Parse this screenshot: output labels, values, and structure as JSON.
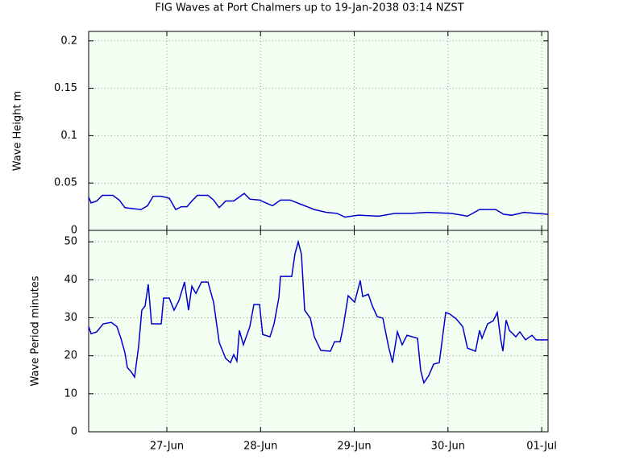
{
  "chart_data": [
    {
      "type": "line",
      "title": "FIG Waves at Port Chalmers up to 19-Jan-2038 03:14 NZST",
      "y_label": "Wave Height m",
      "xlim": [
        0.166,
        5.068
      ],
      "ylim": [
        0,
        0.21
      ],
      "yticks": [
        0,
        0.05,
        0.1,
        0.15,
        0.2
      ],
      "grid": true,
      "x": [
        0.166,
        0.192,
        0.252,
        0.312,
        0.424,
        0.493,
        0.553,
        0.639,
        0.725,
        0.794,
        0.854,
        0.94,
        1.026,
        1.095,
        1.155,
        1.215,
        1.267,
        1.327,
        1.439,
        1.499,
        1.559,
        1.628,
        1.714,
        1.826,
        1.886,
        1.989,
        2.058,
        2.127,
        2.213,
        2.316,
        2.445,
        2.574,
        2.703,
        2.815,
        2.901,
        3.047,
        3.262,
        3.434,
        3.606,
        3.778,
        4.035,
        4.208,
        4.337,
        4.509,
        4.595,
        4.681,
        4.81,
        4.939,
        5.068
      ],
      "series": [
        {
          "name": "Wave Height",
          "color": "#0000cc",
          "values": [
            0.035,
            0.029,
            0.031,
            0.037,
            0.037,
            0.032,
            0.024,
            0.023,
            0.022,
            0.026,
            0.036,
            0.036,
            0.034,
            0.022,
            0.025,
            0.025,
            0.031,
            0.037,
            0.037,
            0.032,
            0.024,
            0.031,
            0.031,
            0.039,
            0.033,
            0.032,
            0.029,
            0.026,
            0.032,
            0.032,
            0.027,
            0.022,
            0.019,
            0.018,
            0.014,
            0.016,
            0.015,
            0.018,
            0.018,
            0.019,
            0.018,
            0.015,
            0.022,
            0.022,
            0.017,
            0.016,
            0.019,
            0.018,
            0.017
          ]
        }
      ]
    },
    {
      "type": "line",
      "y_label": "Wave Period minutes",
      "xlim": [
        0.166,
        5.068
      ],
      "xticks": [
        {
          "value": 1,
          "label": "27-Jun"
        },
        {
          "value": 2,
          "label": "28-Jun"
        },
        {
          "value": 3,
          "label": "29-Jun"
        },
        {
          "value": 4,
          "label": "30-Jun"
        },
        {
          "value": 5,
          "label": "01-Jul"
        }
      ],
      "ylim": [
        0,
        53
      ],
      "yticks": [
        0,
        10,
        20,
        30,
        40,
        50
      ],
      "grid": true,
      "x": [
        0.166,
        0.192,
        0.252,
        0.321,
        0.407,
        0.467,
        0.51,
        0.553,
        0.579,
        0.622,
        0.656,
        0.699,
        0.733,
        0.768,
        0.802,
        0.837,
        0.94,
        0.966,
        1.026,
        1.077,
        1.129,
        1.189,
        1.232,
        1.267,
        1.31,
        1.37,
        1.439,
        1.499,
        1.559,
        1.628,
        1.679,
        1.714,
        1.748,
        1.774,
        1.817,
        1.886,
        1.929,
        1.989,
        2.023,
        2.101,
        2.144,
        2.195,
        2.213,
        2.333,
        2.367,
        2.402,
        2.436,
        2.471,
        2.531,
        2.574,
        2.643,
        2.746,
        2.789,
        2.849,
        2.883,
        2.935,
        3.004,
        3.064,
        3.09,
        3.15,
        3.193,
        3.245,
        3.305,
        3.365,
        3.408,
        3.46,
        3.511,
        3.563,
        3.675,
        3.709,
        3.743,
        3.795,
        3.847,
        3.907,
        3.976,
        4.019,
        4.088,
        4.157,
        4.208,
        4.294,
        4.337,
        4.363,
        4.423,
        4.483,
        4.526,
        4.561,
        4.586,
        4.621,
        4.655,
        4.724,
        4.767,
        4.827,
        4.896,
        4.939,
        5.068
      ],
      "series": [
        {
          "name": "Wave Period",
          "color": "#0000cc",
          "values": [
            27.7,
            25.8,
            26.3,
            28.4,
            28.8,
            27.7,
            24.6,
            20.8,
            16.9,
            15.7,
            14.4,
            22.5,
            32.0,
            33.1,
            38.8,
            28.4,
            28.4,
            35.2,
            35.2,
            32.0,
            34.5,
            39.4,
            32.0,
            38.3,
            36.4,
            39.4,
            39.4,
            34.1,
            23.5,
            19.3,
            18.2,
            20.3,
            18.6,
            26.7,
            22.9,
            27.7,
            33.5,
            33.5,
            25.6,
            25.0,
            28.4,
            35.2,
            40.9,
            40.9,
            46.8,
            50.0,
            46.8,
            32.0,
            29.9,
            25.0,
            21.4,
            21.2,
            23.7,
            23.7,
            27.7,
            35.8,
            34.1,
            39.8,
            35.6,
            36.2,
            33.1,
            30.3,
            29.9,
            22.5,
            18.2,
            26.3,
            22.9,
            25.4,
            24.6,
            16.1,
            12.9,
            14.8,
            17.8,
            18.2,
            31.4,
            31.0,
            29.7,
            27.7,
            22.0,
            21.2,
            26.7,
            24.6,
            28.4,
            29.2,
            31.4,
            24.6,
            21.2,
            29.4,
            26.7,
            25.0,
            26.3,
            24.2,
            25.4,
            24.2,
            24.2
          ]
        }
      ]
    }
  ]
}
